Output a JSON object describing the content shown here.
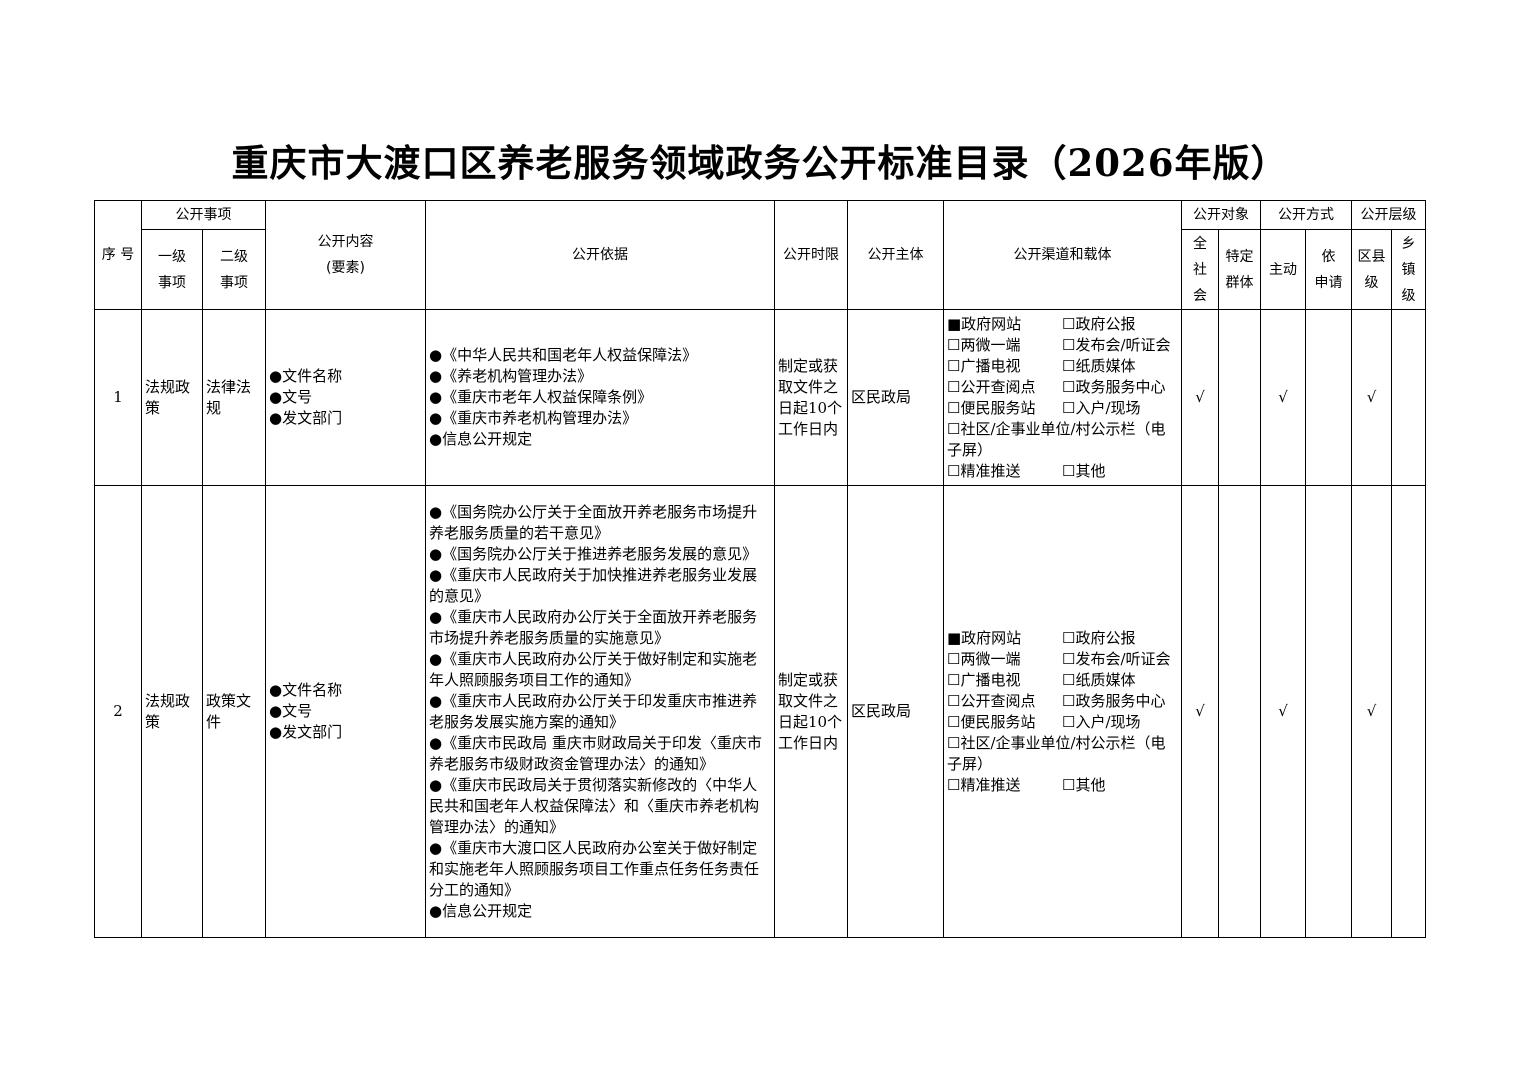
{
  "title": "重庆市大渡口区养老服务领域政务公开标准目录（2026年版）",
  "header": {
    "seq": "序 号",
    "item": "公开事项",
    "level1": "一级\n事项",
    "level2": "二级\n事项",
    "content": "公开内容\n(要素)",
    "basis": "公开依据",
    "time": "公开时限",
    "subject": "公开主体",
    "channel": "公开渠道和载体",
    "target": "公开对象",
    "target_all": "全\n社\n会",
    "target_group": "特定\n群体",
    "mode": "公开方式",
    "mode_active": "主动",
    "mode_request": "依\n申请",
    "tier": "公开层级",
    "tier_county": "区县\n级",
    "tier_town": "乡\n镇\n级"
  },
  "rows": [
    {
      "seq": "1",
      "level1": "法规政策",
      "level2": "法律法规",
      "content": [
        "●文件名称",
        "●文号",
        "●发文部门"
      ],
      "basis": [
        "●《中华人民共和国老年人权益保障法》",
        "●《养老机构管理办法》",
        "●《重庆市老年人权益保障条例》",
        "●《重庆市养老机构管理办法》",
        "●信息公开规定"
      ],
      "time": "制定或获取文件之日起10个工作日内",
      "subject": "区民政局",
      "channels": [
        "■政府网站",
        "☐政府公报",
        "☐两微一端",
        "☐发布会/听证会",
        "☐广播电视",
        "☐纸质媒体",
        "☐公开查阅点",
        "☐政务服务中心",
        "☐便民服务站",
        "☐入户/现场"
      ],
      "channel_wide": "☐社区/企事业单位/村公示栏（电子屏）",
      "channel_last": [
        "☐精准推送",
        "☐其他"
      ],
      "target_all": "√",
      "target_group": "",
      "mode_active": "√",
      "mode_request": "",
      "tier_county": "√",
      "tier_town": ""
    },
    {
      "seq": "2",
      "level1": "法规政策",
      "level2": "政策文件",
      "content": [
        "●文件名称",
        "●文号",
        "●发文部门"
      ],
      "basis": [
        "●《国务院办公厅关于全面放开养老服务市场提升养老服务质量的若干意见》",
        "●《国务院办公厅关于推进养老服务发展的意见》",
        "●《重庆市人民政府关于加快推进养老服务业发展的意见》",
        "●《重庆市人民政府办公厅关于全面放开养老服务市场提升养老服务质量的实施意见》",
        "●《重庆市人民政府办公厅关于做好制定和实施老年人照顾服务项目工作的通知》",
        "●《重庆市人民政府办公厅关于印发重庆市推进养老服务发展实施方案的通知》",
        "●《重庆市民政局 重庆市财政局关于印发〈重庆市养老服务市级财政资金管理办法〉的通知》",
        "●《重庆市民政局关于贯彻落实新修改的〈中华人民共和国老年人权益保障法〉和〈重庆市养老机构管理办法〉的通知》",
        "●《重庆市大渡口区人民政府办公室关于做好制定和实施老年人照顾服务项目工作重点任务任务责任分工的通知》",
        "●信息公开规定"
      ],
      "time": "制定或获取文件之日起10个工作日内",
      "subject": "区民政局",
      "channels": [
        "■政府网站",
        "☐政府公报",
        "☐两微一端",
        "☐发布会/听证会",
        "☐广播电视",
        "☐纸质媒体",
        "☐公开查阅点",
        "☐政务服务中心",
        "☐便民服务站",
        "☐入户/现场"
      ],
      "channel_wide": "☐社区/企事业单位/村公示栏（电子屏）",
      "channel_last": [
        "☐精准推送",
        "☐其他"
      ],
      "target_all": "√",
      "target_group": "",
      "mode_active": "√",
      "mode_request": "",
      "tier_county": "√",
      "tier_town": ""
    }
  ]
}
